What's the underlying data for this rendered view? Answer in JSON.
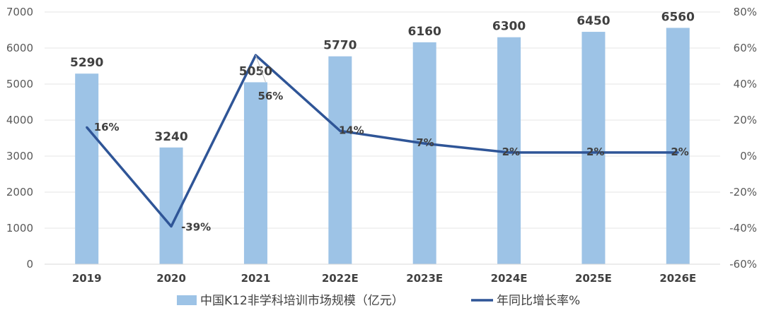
{
  "chart_data": {
    "type": "bar",
    "categories": [
      "2019",
      "2020",
      "2021",
      "2022E",
      "2023E",
      "2024E",
      "2025E",
      "2026E"
    ],
    "series": [
      {
        "name": "中国K12非学科培训市场规模（亿元）",
        "type": "bar",
        "axis": "left",
        "color": "#9dc3e6",
        "values": [
          5290,
          3240,
          5050,
          5770,
          6160,
          6300,
          6450,
          6560
        ],
        "labels": [
          "5290",
          "3240",
          "5050",
          "5770",
          "6160",
          "6300",
          "6450",
          "6560"
        ]
      },
      {
        "name": "年同比增长率%",
        "type": "line",
        "axis": "right",
        "color": "#2f5597",
        "values": [
          16,
          -39,
          56,
          14,
          7,
          2,
          2,
          2
        ],
        "labels": [
          "16%",
          "-39%",
          "56%",
          "14%",
          "7%",
          "2%",
          "2%",
          "2%"
        ]
      }
    ],
    "y_left": {
      "ylim": [
        0,
        7000
      ],
      "ticks": [
        "0",
        "1000",
        "2000",
        "3000",
        "4000",
        "5000",
        "6000",
        "7000"
      ]
    },
    "y_right": {
      "ylim": [
        -60,
        80
      ],
      "ticks": [
        "-60%",
        "-40%",
        "-20%",
        "0%",
        "20%",
        "40%",
        "60%",
        "80%"
      ]
    },
    "grid": true,
    "legend_position": "bottom"
  }
}
